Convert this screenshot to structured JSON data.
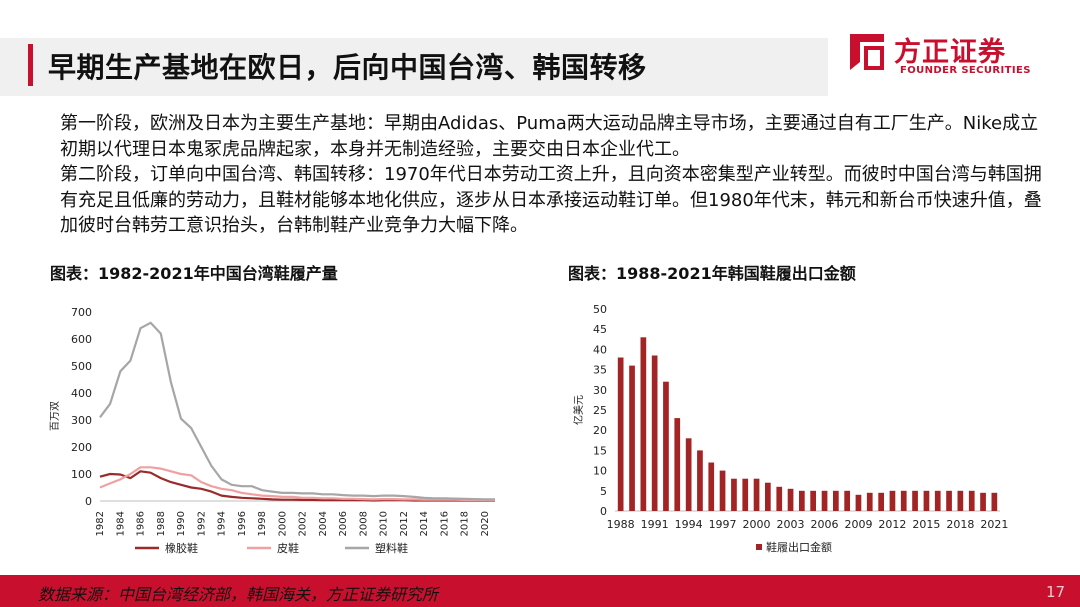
{
  "title": "早期生产基地在欧日，后向中国台湾、韩国转移",
  "logo": {
    "cn": "方正证券",
    "en": "FOUNDER SECURITIES",
    "brand_color": "#c8102e"
  },
  "body": [
    "第一阶段，欧洲及日本为主要生产基地：早期由Adidas、Puma两大运动品牌主导市场，主要通过自有工厂生产。Nike成立初期以代理日本鬼冢虎品牌起家，本身并无制造经验，主要交由日本企业代工。",
    "第二阶段，订单向中国台湾、韩国转移：1970年代日本劳动工资上升，且向资本密集型产业转型。而彼时中国台湾与韩国拥有充足且低廉的劳动力，且鞋材能够本地化供应，逐步从日本承接运动鞋订单。但1980年代末，韩元和新台币快速升值，叠加彼时台韩劳工意识抬头，台韩制鞋产业竞争力大幅下降。"
  ],
  "footer": {
    "source": "数据来源：中国台湾经济部，韩国海关，方正证券研究所",
    "page": "17"
  },
  "chart_data": [
    {
      "type": "line",
      "title": "图表：1982-2021年中国台湾鞋履产量",
      "ylabel": "百万双",
      "xlabel": "",
      "ylim": [
        0,
        700
      ],
      "yticks": [
        0,
        100,
        200,
        300,
        400,
        500,
        600,
        700
      ],
      "x": [
        1982,
        1983,
        1984,
        1985,
        1986,
        1987,
        1988,
        1989,
        1990,
        1991,
        1992,
        1993,
        1994,
        1995,
        1996,
        1997,
        1998,
        1999,
        2000,
        2001,
        2002,
        2003,
        2004,
        2005,
        2006,
        2007,
        2008,
        2009,
        2010,
        2011,
        2012,
        2013,
        2014,
        2015,
        2016,
        2017,
        2018,
        2019,
        2020,
        2021
      ],
      "xticks": [
        1982,
        1984,
        1986,
        1988,
        1990,
        1992,
        1994,
        1996,
        1998,
        2000,
        2002,
        2004,
        2006,
        2008,
        2010,
        2012,
        2014,
        2016,
        2018,
        2020
      ],
      "legend_position": "bottom",
      "series": [
        {
          "name": "橡胶鞋",
          "color": "#9b2a2a",
          "values": [
            90,
            100,
            98,
            85,
            110,
            105,
            85,
            70,
            60,
            50,
            45,
            35,
            20,
            15,
            12,
            10,
            8,
            6,
            5,
            5,
            4,
            4,
            3,
            3,
            3,
            3,
            3,
            2,
            3,
            3,
            3,
            2,
            2,
            2,
            2,
            2,
            2,
            2,
            1,
            1
          ]
        },
        {
          "name": "皮鞋",
          "color": "#f0a0a0",
          "values": [
            50,
            65,
            80,
            100,
            125,
            125,
            120,
            110,
            100,
            95,
            70,
            55,
            45,
            40,
            30,
            25,
            20,
            18,
            15,
            15,
            12,
            12,
            10,
            10,
            8,
            8,
            7,
            6,
            7,
            7,
            6,
            6,
            5,
            5,
            5,
            5,
            4,
            4,
            3,
            3
          ]
        },
        {
          "name": "塑料鞋",
          "color": "#a6a6a6",
          "values": [
            310,
            360,
            480,
            520,
            640,
            660,
            620,
            440,
            305,
            270,
            200,
            130,
            80,
            60,
            55,
            55,
            40,
            35,
            30,
            30,
            28,
            28,
            25,
            25,
            22,
            20,
            20,
            18,
            20,
            20,
            18,
            15,
            12,
            10,
            10,
            9,
            8,
            7,
            6,
            6
          ]
        }
      ]
    },
    {
      "type": "bar",
      "title": "图表：1988-2021年韩国鞋履出口金额",
      "ylabel": "亿美元",
      "xlabel": "",
      "ylim": [
        0,
        50
      ],
      "yticks": [
        0,
        5,
        10,
        15,
        20,
        25,
        30,
        35,
        40,
        45,
        50
      ],
      "categories": [
        1988,
        1989,
        1990,
        1991,
        1992,
        1993,
        1994,
        1995,
        1996,
        1997,
        1998,
        1999,
        2000,
        2001,
        2002,
        2003,
        2004,
        2005,
        2006,
        2007,
        2008,
        2009,
        2010,
        2011,
        2012,
        2013,
        2014,
        2015,
        2016,
        2017,
        2018,
        2019,
        2020,
        2021
      ],
      "xticks": [
        1988,
        1991,
        1994,
        1997,
        2000,
        2003,
        2006,
        2009,
        2012,
        2015,
        2018,
        2021
      ],
      "legend_position": "bottom",
      "series": [
        {
          "name": "鞋履出口金额",
          "color": "#a32424",
          "values": [
            38,
            36,
            43,
            38.5,
            32,
            23,
            18,
            15,
            12,
            10,
            8,
            8,
            8,
            7,
            6,
            5.5,
            5,
            5,
            5,
            5,
            5,
            4,
            4.5,
            4.5,
            5,
            5,
            5,
            5,
            5,
            5,
            5,
            5,
            4.5,
            4.5
          ]
        }
      ]
    }
  ]
}
